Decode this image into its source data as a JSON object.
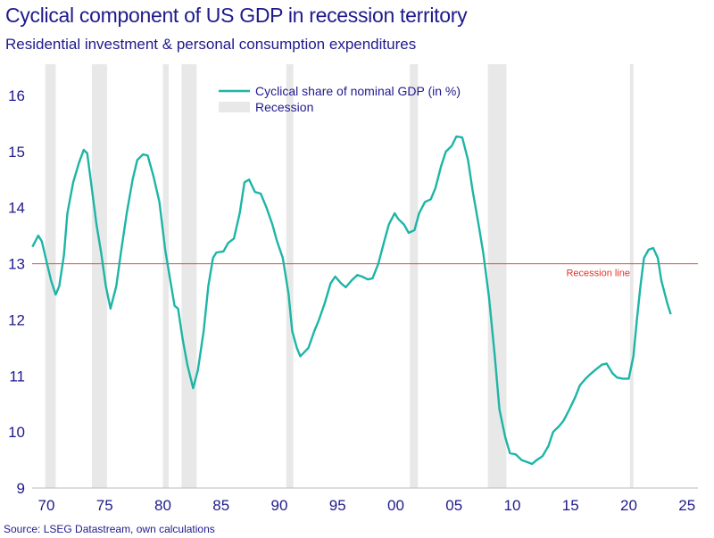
{
  "title": "Cyclical component of US GDP in recession territory",
  "subtitle": "Residential investment & personal consumption expenditures",
  "source": "Source: LSEG Datastream, own calculations",
  "chart_data": {
    "type": "line",
    "title": "Cyclical component of US GDP in recession territory",
    "xlim": [
      1968.8,
      2026
    ],
    "ylim": [
      9,
      16.6
    ],
    "x_ticks": [
      1970,
      1975,
      1980,
      1985,
      1990,
      1995,
      2000,
      2005,
      2010,
      2015,
      2020,
      2025
    ],
    "x_tick_labels": [
      "70",
      "75",
      "80",
      "85",
      "90",
      "95",
      "00",
      "05",
      "10",
      "15",
      "20",
      "25"
    ],
    "y_ticks": [
      9,
      10,
      11,
      12,
      13,
      14,
      15,
      16
    ],
    "y_tick_labels": [
      "9",
      "10",
      "11",
      "12",
      "13",
      "14",
      "15",
      "16"
    ],
    "grid": false,
    "legend_placement": "top-center",
    "legend": [
      "Cyclical share of nominal GDP (in %)",
      "Recession"
    ],
    "colors": {
      "series": "#1db5a6",
      "recession": "#e8e8e8",
      "recession_line": "#e8473c",
      "text": "#1f1a8c"
    },
    "recession_line": {
      "value": 13,
      "label": "Recession line"
    },
    "recessions": [
      [
        1969.9,
        1970.8
      ],
      [
        1973.9,
        1975.2
      ],
      [
        1980.0,
        1980.5
      ],
      [
        1981.6,
        1982.9
      ],
      [
        1990.6,
        1991.2
      ],
      [
        2001.2,
        2001.9
      ],
      [
        2007.9,
        2009.5
      ],
      [
        2020.1,
        2020.4
      ]
    ],
    "series": [
      {
        "name": "Cyclical share of nominal GDP (in %)",
        "x": [
          1968.8,
          1969.3,
          1969.6,
          1970.0,
          1970.4,
          1970.8,
          1971.1,
          1971.5,
          1971.8,
          1972.3,
          1972.8,
          1973.2,
          1973.5,
          1973.8,
          1974.3,
          1974.7,
          1975.1,
          1975.5,
          1976.0,
          1976.4,
          1976.9,
          1977.4,
          1977.8,
          1978.3,
          1978.7,
          1979.2,
          1979.7,
          1980.2,
          1980.6,
          1981.0,
          1981.3,
          1981.7,
          1982.1,
          1982.6,
          1983.0,
          1983.5,
          1983.9,
          1984.3,
          1984.6,
          1985.2,
          1985.6,
          1986.1,
          1986.6,
          1987.0,
          1987.4,
          1987.9,
          1988.4,
          1988.9,
          1989.4,
          1989.8,
          1990.3,
          1990.8,
          1991.1,
          1991.5,
          1991.8,
          1992.5,
          1993.0,
          1993.4,
          1993.9,
          1994.4,
          1994.8,
          1995.3,
          1995.7,
          1996.2,
          1996.7,
          1997.1,
          1997.6,
          1998.0,
          1998.5,
          1999.0,
          1999.4,
          1999.9,
          2000.2,
          2000.7,
          2001.1,
          2001.6,
          2002.0,
          2002.5,
          2003.0,
          2003.4,
          2003.9,
          2004.3,
          2004.8,
          2005.2,
          2005.7,
          2006.2,
          2006.6,
          2007.1,
          2007.5,
          2008.0,
          2008.5,
          2008.9,
          2009.4,
          2009.8,
          2010.3,
          2010.8,
          2011.2,
          2011.7,
          2012.1,
          2012.6,
          2013.1,
          2013.5,
          2014.0,
          2014.4,
          2014.9,
          2015.4,
          2015.8,
          2016.3,
          2016.7,
          2017.2,
          2017.7,
          2018.1,
          2018.6,
          2019.0,
          2019.5,
          2020.0,
          2020.4,
          2020.7,
          2021.0,
          2021.3,
          2021.7,
          2022.1,
          2022.5,
          2022.8,
          2023.3,
          2023.6
        ],
        "y": [
          13.3,
          13.5,
          13.4,
          13.05,
          12.7,
          12.45,
          12.6,
          13.15,
          13.9,
          14.45,
          14.8,
          15.03,
          14.97,
          14.5,
          13.7,
          13.2,
          12.6,
          12.2,
          12.6,
          13.2,
          13.9,
          14.5,
          14.85,
          14.95,
          14.93,
          14.55,
          14.1,
          13.25,
          12.75,
          12.25,
          12.2,
          11.65,
          11.2,
          10.78,
          11.1,
          11.8,
          12.6,
          13.1,
          13.2,
          13.22,
          13.37,
          13.45,
          13.9,
          14.45,
          14.5,
          14.28,
          14.25,
          14.0,
          13.7,
          13.4,
          13.1,
          12.45,
          11.8,
          11.5,
          11.35,
          11.5,
          11.8,
          12.0,
          12.3,
          12.65,
          12.77,
          12.65,
          12.58,
          12.7,
          12.8,
          12.77,
          12.72,
          12.74,
          13.0,
          13.4,
          13.7,
          13.9,
          13.8,
          13.7,
          13.55,
          13.6,
          13.9,
          14.1,
          14.15,
          14.35,
          14.75,
          15.0,
          15.1,
          15.27,
          15.25,
          14.85,
          14.3,
          13.7,
          13.2,
          12.4,
          11.35,
          10.4,
          9.9,
          9.62,
          9.6,
          9.5,
          9.47,
          9.43,
          9.5,
          9.57,
          9.75,
          10.0,
          10.1,
          10.2,
          10.4,
          10.62,
          10.83,
          10.95,
          11.03,
          11.12,
          11.2,
          11.22,
          11.05,
          10.97,
          10.95,
          10.95,
          11.35,
          12.0,
          12.6,
          13.1,
          13.25,
          13.28,
          13.1,
          12.7,
          12.3,
          12.1
        ]
      }
    ]
  }
}
